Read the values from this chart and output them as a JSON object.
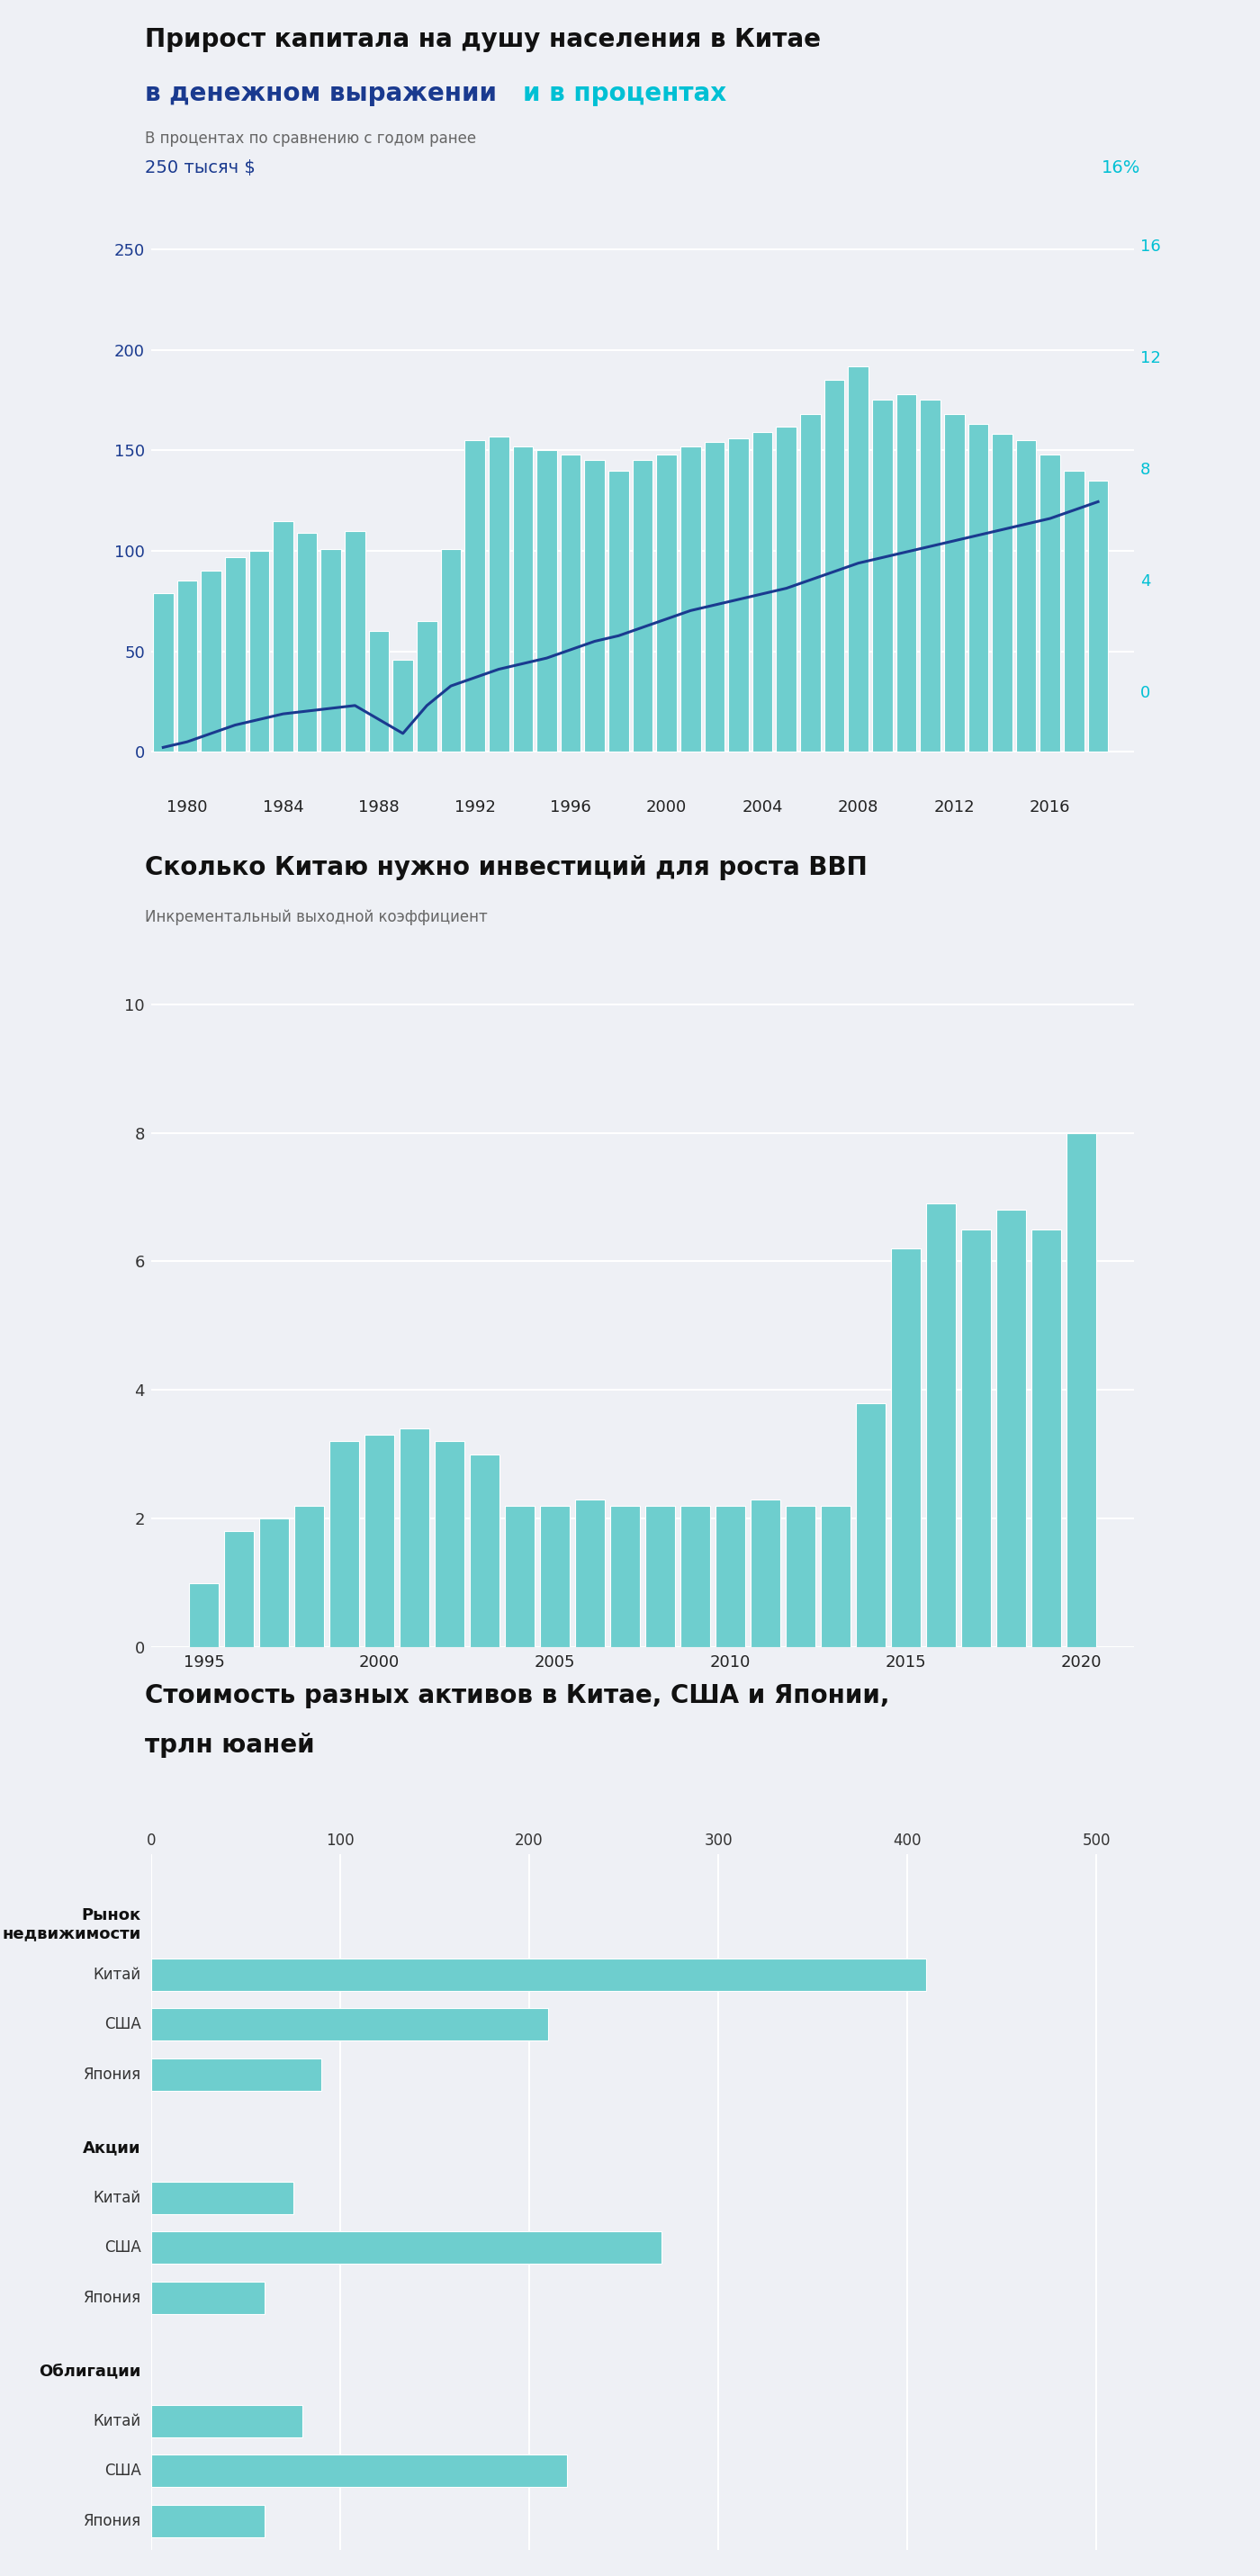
{
  "bg_color": "#eef0f5",
  "teal_color": "#6ecece",
  "bar_edge_color": "#ffffff",
  "chart1": {
    "title_black": "Прирост капитала на душу населения в Китае",
    "title_blue": "в денежном выражении",
    "title_cyan": "и в процентах",
    "subtitle": "В процентах по сравнению с годом ранее",
    "left_axis_label": "250 тысяч $",
    "right_axis_label": "16%",
    "left_tick_color": "#1a3a8f",
    "right_tick_color": "#00c0d4",
    "line_color": "#1a3a8f",
    "years": [
      1979,
      1980,
      1981,
      1982,
      1983,
      1984,
      1985,
      1986,
      1987,
      1988,
      1989,
      1990,
      1991,
      1992,
      1993,
      1994,
      1995,
      1996,
      1997,
      1998,
      1999,
      2000,
      2001,
      2002,
      2003,
      2004,
      2005,
      2006,
      2007,
      2008,
      2009,
      2010,
      2011,
      2012,
      2013,
      2014,
      2015,
      2016,
      2017,
      2018
    ],
    "bar_values": [
      79,
      85,
      90,
      97,
      100,
      115,
      109,
      101,
      110,
      60,
      46,
      65,
      101,
      155,
      157,
      152,
      150,
      148,
      145,
      140,
      145,
      148,
      152,
      154,
      156,
      159,
      162,
      168,
      185,
      192,
      175,
      178,
      175,
      168,
      163,
      158,
      155,
      148,
      140,
      135
    ],
    "line_values": [
      -2.0,
      -1.8,
      -1.5,
      -1.2,
      -1.0,
      -0.8,
      -0.7,
      -0.6,
      -0.5,
      -1.0,
      -1.5,
      -0.5,
      0.2,
      0.5,
      0.8,
      1.0,
      1.2,
      1.5,
      1.8,
      2.0,
      2.3,
      2.6,
      2.9,
      3.1,
      3.3,
      3.5,
      3.7,
      4.0,
      4.3,
      4.6,
      4.8,
      5.0,
      5.2,
      5.4,
      5.6,
      5.8,
      6.0,
      6.2,
      6.5,
      6.8
    ],
    "left_yticks": [
      0,
      50,
      100,
      150,
      200,
      250
    ],
    "right_yticks": [
      0,
      4,
      8,
      12,
      16
    ],
    "left_ylim": [
      -20,
      280
    ],
    "right_ylim": [
      -3.6,
      18
    ],
    "xticks": [
      1980,
      1984,
      1988,
      1992,
      1996,
      2000,
      2004,
      2008,
      2012,
      2016
    ]
  },
  "chart2": {
    "title": "Сколько Китаю нужно инвестиций для роста ВВП",
    "subtitle": "Инкрементальный выходной коэффициент",
    "years": [
      1995,
      1996,
      1997,
      1998,
      1999,
      2000,
      2001,
      2002,
      2003,
      2004,
      2005,
      2006,
      2007,
      2008,
      2009,
      2010,
      2011,
      2012,
      2013,
      2014,
      2015,
      2016,
      2017,
      2018,
      2019,
      2020
    ],
    "bar_values": [
      1.0,
      1.8,
      2.0,
      2.2,
      3.2,
      3.3,
      3.4,
      3.2,
      3.0,
      2.2,
      2.2,
      2.3,
      2.2,
      2.2,
      2.2,
      2.2,
      2.3,
      2.2,
      2.2,
      3.8,
      6.2,
      6.9,
      6.5,
      6.8,
      6.5,
      8.0
    ],
    "yticks": [
      0,
      2,
      4,
      6,
      8,
      10
    ],
    "ylim": [
      0,
      10.5
    ],
    "xticks": [
      1995,
      2000,
      2005,
      2010,
      2015,
      2020
    ]
  },
  "chart3": {
    "title_line1": "Стоимость разных активов в Китае, США и Японии,",
    "title_line2": "трлн юаней",
    "sections": [
      {
        "header": "Рынок\nнедвижимости",
        "items": [
          "Китай",
          "США",
          "Япония"
        ],
        "values": [
          410,
          210,
          90
        ]
      },
      {
        "header": "Акции",
        "items": [
          "Китай",
          "США",
          "Япония"
        ],
        "values": [
          75,
          270,
          60
        ]
      },
      {
        "header": "Облигации",
        "items": [
          "Китай",
          "США",
          "Япония"
        ],
        "values": [
          80,
          220,
          60
        ]
      }
    ],
    "xticks": [
      0,
      100,
      200,
      300,
      400,
      500
    ],
    "xlim": [
      0,
      520
    ]
  }
}
